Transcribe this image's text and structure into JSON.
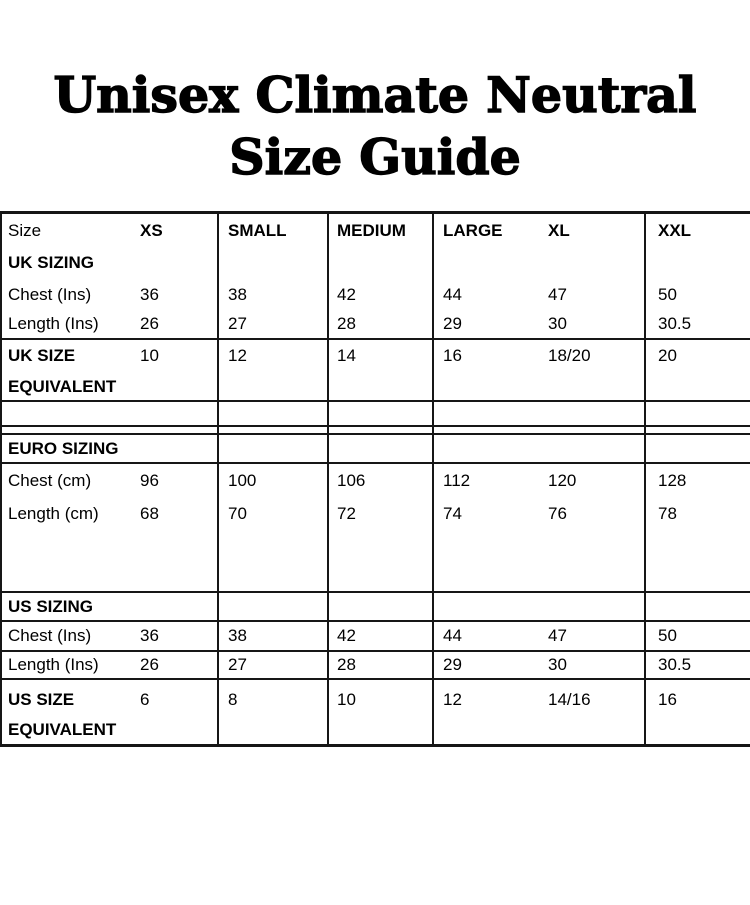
{
  "title": {
    "line1": "Unisex Climate Neutral",
    "line2": "Size Guide"
  },
  "table": {
    "header": {
      "label": "Size",
      "sizes": [
        "XS",
        "SMALL",
        "MEDIUM",
        "LARGE",
        "XL",
        "XXL"
      ]
    },
    "uk": {
      "section": "UK SIZING",
      "chest": {
        "label": "Chest (Ins)",
        "values": [
          "36",
          "38",
          "42",
          "44",
          "47",
          "50"
        ]
      },
      "length": {
        "label": "Length (Ins)",
        "values": [
          "26",
          "27",
          "28",
          "29",
          "30",
          "30.5"
        ]
      },
      "equivalent": {
        "label": "UK SIZE EQUIVALENT",
        "values": [
          "10",
          "12",
          "14",
          "16",
          "18/20",
          "20"
        ]
      }
    },
    "euro": {
      "section": "EURO SIZING",
      "chest": {
        "label": "Chest (cm)",
        "values": [
          "96",
          "100",
          "106",
          "112",
          "120",
          "128"
        ]
      },
      "length": {
        "label": "Length (cm)",
        "values": [
          "68",
          "70",
          "72",
          "74",
          "76",
          "78"
        ]
      }
    },
    "us": {
      "section": "US SIZING",
      "chest": {
        "label": "Chest (Ins)",
        "values": [
          "36",
          "38",
          "42",
          "44",
          "47",
          "50"
        ]
      },
      "length": {
        "label": "Length (Ins)",
        "values": [
          "26",
          "27",
          "28",
          "29",
          "30",
          "30.5"
        ]
      },
      "equivalent": {
        "label": "US SIZE EQUIVALENT",
        "values": [
          "6",
          "8",
          "10",
          "12",
          "14/16",
          "16"
        ]
      }
    }
  },
  "colors": {
    "text": "#000000",
    "border": "#161616",
    "background": "#ffffff"
  }
}
